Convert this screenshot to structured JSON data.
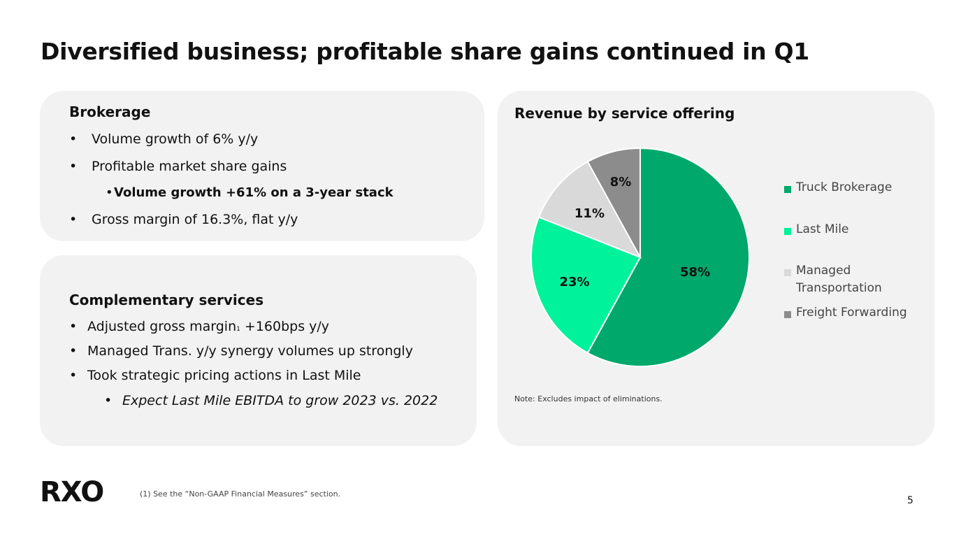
{
  "title": "Diversified business; profitable share gains continued in Q1",
  "brokerage": {
    "heading": "Brokerage",
    "bullets": [
      {
        "marker": "•",
        "text": "Volume growth of 6% y/y"
      },
      {
        "marker": "•",
        "text": "Profitable market share gains"
      },
      {
        "marker": "•",
        "text": "Volume growth +61% on a 3-year stack"
      },
      {
        "marker": "•",
        "text": "Gross margin of 16.3%, flat y/y"
      }
    ]
  },
  "complementary": {
    "heading": "Complementary services",
    "bullet1_pre": "Adjusted gross margin",
    "bullet1_sup": "1",
    "bullet1_post": " +160bps y/y",
    "bullets": [
      {
        "marker": "•",
        "text": "Managed Trans. y/y synergy volumes up strongly"
      },
      {
        "marker": "•",
        "text": "Took strategic pricing actions in Last Mile"
      },
      {
        "marker": "•",
        "text": "Expect Last Mile EBITDA to grow 2023 vs. 2022"
      }
    ],
    "bullet1_marker": "•"
  },
  "chart_data": {
    "type": "pie",
    "title": "Revenue by service offering",
    "categories": [
      "Truck Brokerage",
      "Last Mile",
      "Managed Transportation",
      "Freight Forwarding"
    ],
    "values": [
      58,
      23,
      11,
      8
    ],
    "labels": [
      "58%",
      "23%",
      "11%",
      "8%"
    ],
    "legend_lines": [
      [
        "Truck Brokerage"
      ],
      [
        "Last Mile"
      ],
      [
        "Managed",
        "Transportation"
      ],
      [
        "Freight Forwarding"
      ]
    ],
    "colors": [
      "#00a86b",
      "#00f29b",
      "#d9d9d9",
      "#8c8c8c"
    ],
    "label_colors": [
      "#111111",
      "#111111",
      "#111111",
      "#111111"
    ],
    "legend_position": "right",
    "note": "Note: Excludes impact of eliminations."
  },
  "footer": {
    "logo": "RXO",
    "footnote": "(1) See the “Non-GAAP Financial Measures” section.",
    "page_number": "5"
  }
}
